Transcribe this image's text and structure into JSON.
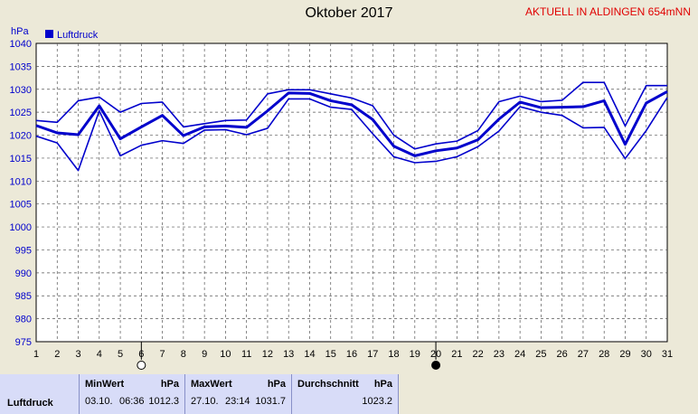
{
  "header": {
    "title": "Oktober 2017",
    "location": "AKTUELL IN ALDINGEN 654mNN"
  },
  "chart_data": {
    "type": "line",
    "title": "Oktober 2017",
    "ylabel": "hPa",
    "xlabel": "",
    "ylim": [
      975,
      1040
    ],
    "yticks": [
      975,
      980,
      985,
      990,
      995,
      1000,
      1005,
      1010,
      1015,
      1020,
      1025,
      1030,
      1035,
      1040
    ],
    "x": [
      1,
      2,
      3,
      4,
      5,
      6,
      7,
      8,
      9,
      10,
      11,
      12,
      13,
      14,
      15,
      16,
      17,
      18,
      19,
      20,
      21,
      22,
      23,
      24,
      25,
      26,
      27,
      28,
      29,
      30,
      31
    ],
    "grid": true,
    "legend": {
      "label": "Luftdruck",
      "color": "#0000cc",
      "placement": "top-left"
    },
    "series": [
      {
        "name": "Luftdruck",
        "role": "max",
        "color": "#0000cc",
        "values": [
          1023.2,
          1022.8,
          1027.5,
          1028.3,
          1025.0,
          1026.9,
          1027.2,
          1021.8,
          1022.5,
          1023.2,
          1023.3,
          1029.0,
          1029.9,
          1029.9,
          1029.0,
          1028.1,
          1026.4,
          1020.0,
          1017.0,
          1018.1,
          1018.7,
          1021.0,
          1027.3,
          1028.5,
          1027.3,
          1027.6,
          1031.5,
          1031.5,
          1022.0,
          1030.8,
          1030.8
        ]
      },
      {
        "name": "Luftdruck",
        "role": "avg",
        "color": "#0000cc",
        "values": [
          1022.1,
          1020.5,
          1020.1,
          1026.4,
          1019.2,
          1021.8,
          1024.3,
          1019.9,
          1021.8,
          1022.0,
          1021.7,
          1025.3,
          1029.2,
          1029.1,
          1027.5,
          1026.6,
          1023.4,
          1017.6,
          1015.5,
          1016.6,
          1017.2,
          1019.0,
          1023.5,
          1027.2,
          1026.0,
          1026.1,
          1026.2,
          1027.5,
          1018.0,
          1027.0,
          1029.5
        ]
      },
      {
        "name": "Luftdruck",
        "role": "min",
        "color": "#0000cc",
        "values": [
          1019.8,
          1018.3,
          1012.3,
          1025.3,
          1015.5,
          1017.8,
          1018.8,
          1018.2,
          1021.1,
          1021.2,
          1020.1,
          1021.5,
          1027.9,
          1027.9,
          1026.1,
          1025.6,
          1020.3,
          1015.3,
          1014.0,
          1014.3,
          1015.3,
          1017.5,
          1020.9,
          1026.2,
          1025.0,
          1024.3,
          1021.6,
          1021.7,
          1014.9,
          1021.0,
          1028.2
        ]
      }
    ],
    "markers": [
      {
        "x": 6,
        "symbol": "open-circle"
      },
      {
        "x": 20,
        "symbol": "filled-circle"
      }
    ]
  },
  "stats": {
    "row_label": "Luftdruck",
    "min": {
      "header": "MinWert",
      "unit": "hPa",
      "date": "03.10.",
      "time": "06:36",
      "value": "1012.3"
    },
    "max": {
      "header": "MaxWert",
      "unit": "hPa",
      "date": "27.10.",
      "time": "23:14",
      "value": "1031.7"
    },
    "avg": {
      "header": "Durchschnitt",
      "unit": "hPa",
      "value": "1023.2"
    }
  }
}
